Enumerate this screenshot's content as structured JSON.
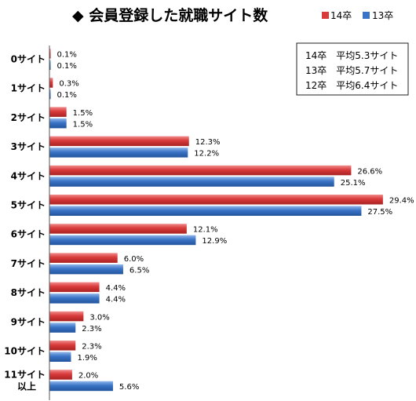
{
  "chart_data": {
    "type": "bar",
    "orientation": "horizontal",
    "title": "◆ 会員登録した就職サイト数",
    "categories": [
      "0サイト",
      "1サイト",
      "2サイト",
      "3サイト",
      "4サイト",
      "5サイト",
      "6サイト",
      "7サイト",
      "8サイト",
      "9サイト",
      "10サイト",
      "11サイト以上"
    ],
    "series": [
      {
        "name": "14卒",
        "color": "#d93a3a",
        "values": [
          0.1,
          0.3,
          1.5,
          12.3,
          26.6,
          29.4,
          12.1,
          6.0,
          4.4,
          3.0,
          2.3,
          2.0
        ],
        "labels": [
          "0.1%",
          "0.3%",
          "1.5%",
          "12.3%",
          "26.6%",
          "29.4%",
          "12.1%",
          "6.0%",
          "4.4%",
          "3.0%",
          "2.3%",
          "2.0%"
        ]
      },
      {
        "name": "13卒",
        "color": "#3a74c6",
        "values": [
          0.1,
          0.1,
          1.5,
          12.2,
          25.1,
          27.5,
          12.9,
          6.5,
          4.4,
          2.3,
          1.9,
          5.6
        ],
        "labels": [
          "0.1%",
          "0.1%",
          "1.5%",
          "12.2%",
          "25.1%",
          "27.5%",
          "12.9%",
          "6.5%",
          "4.4%",
          "2.3%",
          "1.9%",
          "5.6%"
        ]
      }
    ],
    "xlim": [
      0,
      31
    ],
    "legend_position": "top-right",
    "annotations": [
      "14卒　平均5.3サイト",
      "13卒　平均5.7サイト",
      "12卒　平均6.4サイト"
    ]
  }
}
